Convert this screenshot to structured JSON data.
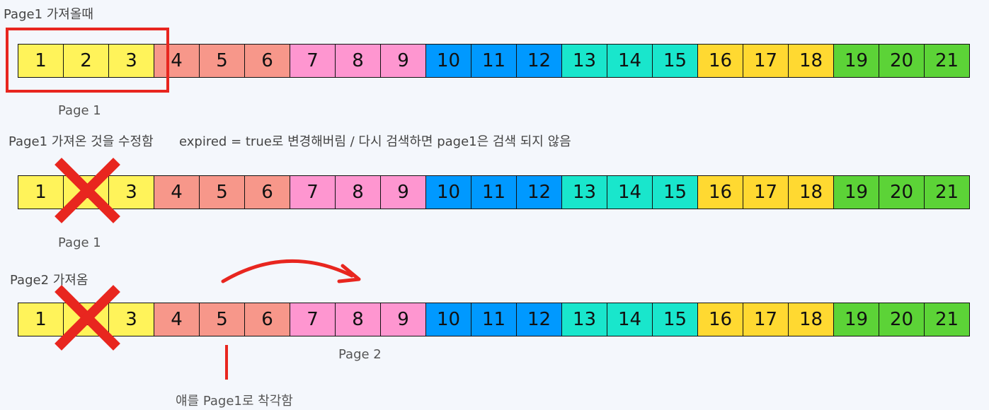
{
  "labels": {
    "step1": "Page1 가져올때",
    "page1_a": "Page 1",
    "step2_prefix": "Page1 가져온 것을 수정함",
    "step2_detail": "expired = true로 변경해버림 / 다시 검색하면 page1은 검색 되지 않음",
    "page1_b": "Page 1",
    "step3": "Page2 가져옴",
    "page2": "Page 2",
    "mistake": "얘를 Page1로 착각함"
  },
  "cells": [
    {
      "n": "1",
      "color": "#fff35a"
    },
    {
      "n": "2",
      "color": "#fff35a"
    },
    {
      "n": "3",
      "color": "#fff35a"
    },
    {
      "n": "4",
      "color": "#f7978a"
    },
    {
      "n": "5",
      "color": "#f7978a"
    },
    {
      "n": "6",
      "color": "#f7978a"
    },
    {
      "n": "7",
      "color": "#fe96d0"
    },
    {
      "n": "8",
      "color": "#fe96d0"
    },
    {
      "n": "9",
      "color": "#fe96d0"
    },
    {
      "n": "10",
      "color": "#0099ff"
    },
    {
      "n": "11",
      "color": "#0099ff"
    },
    {
      "n": "12",
      "color": "#0099ff"
    },
    {
      "n": "13",
      "color": "#19e6cc"
    },
    {
      "n": "14",
      "color": "#19e6cc"
    },
    {
      "n": "15",
      "color": "#19e6cc"
    },
    {
      "n": "16",
      "color": "#ffd931"
    },
    {
      "n": "17",
      "color": "#ffd931"
    },
    {
      "n": "18",
      "color": "#ffd931"
    },
    {
      "n": "19",
      "color": "#5cd337"
    },
    {
      "n": "20",
      "color": "#5cd337"
    },
    {
      "n": "21",
      "color": "#5cd337"
    }
  ],
  "colors": {
    "highlight_box": "#e8261f",
    "cross_mark": "#e8261f",
    "arrow": "#e8261f"
  }
}
